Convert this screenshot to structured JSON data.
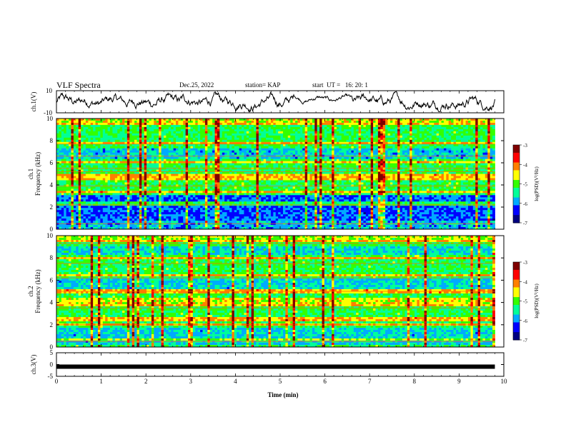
{
  "header": {
    "title": "VLF Spectra",
    "date": "Dec.25, 2022",
    "station": "station= KAP",
    "start": "start  UT =   16: 20: 1"
  },
  "chart_data": [
    {
      "type": "line",
      "panel": "ch.1 voltage",
      "ylabel": "ch.1(V)",
      "ylim": [
        -10,
        10
      ],
      "yticks": [
        "10",
        "-10"
      ],
      "xlim": [
        0,
        10
      ],
      "series": [
        {
          "values_approx": "noisy waveform centered near 0 V, amplitude roughly ±5 V, quieter segment around 5.3–6.6 min"
        }
      ]
    },
    {
      "type": "heatmap",
      "panel": "ch.1 spectrogram",
      "ylabel": "ch.1 Frequency (kHz)",
      "ylim": [
        0,
        10
      ],
      "yticks": [
        "0",
        "2",
        "4",
        "6",
        "8",
        "10"
      ],
      "xlim": [
        0,
        9.8
      ],
      "colorbar": {
        "label": "log(PSD)(V²/Hz)",
        "range": [
          -7,
          -3
        ],
        "ticks": [
          "-3",
          "-4",
          "-5",
          "-6",
          "-7"
        ]
      },
      "bands_khz": [
        0.5,
        2.2,
        3.9,
        5.2,
        5.5,
        6.6,
        7.7
      ],
      "dark_band_khz": [
        7.0,
        9.2
      ]
    },
    {
      "type": "heatmap",
      "panel": "ch.2 spectrogram",
      "ylabel": "ch.2 Frequency (kHz)",
      "ylim": [
        0,
        10
      ],
      "yticks": [
        "0",
        "2",
        "4",
        "6",
        "8",
        "10"
      ],
      "xlim": [
        0,
        9.8
      ],
      "colorbar": {
        "label": "log(PSD)(V²/Hz)",
        "range": [
          -7,
          -3
        ],
        "ticks": [
          "-3",
          "-4",
          "-5",
          "-6",
          "-7"
        ]
      },
      "bands_khz": [
        0.5,
        2.0,
        3.5,
        5.0,
        6.2,
        7.5,
        8.0,
        9.3
      ],
      "strong_band_khz": [
        5.6,
        6.2
      ]
    },
    {
      "type": "line",
      "panel": "ch.3 voltage",
      "ylabel": "ch.3(V)",
      "ylim": [
        -5,
        5
      ],
      "yticks": [
        "5",
        "0",
        "-5"
      ],
      "xlim": [
        0,
        10
      ],
      "series": [
        {
          "values_approx": "thick flat trace near -0.7 V"
        }
      ]
    }
  ],
  "xaxis": {
    "label": "Time  (min)",
    "ticks": [
      "0",
      "1",
      "2",
      "3",
      "4",
      "5",
      "6",
      "7",
      "8",
      "9",
      "10"
    ],
    "range": [
      0,
      10
    ]
  },
  "colors": {
    "line": "#000000",
    "colormap": [
      "#000080",
      "#0000ff",
      "#00aaff",
      "#00ff99",
      "#33ff00",
      "#ffff00",
      "#ff7f00",
      "#ff0000",
      "#800000"
    ]
  }
}
